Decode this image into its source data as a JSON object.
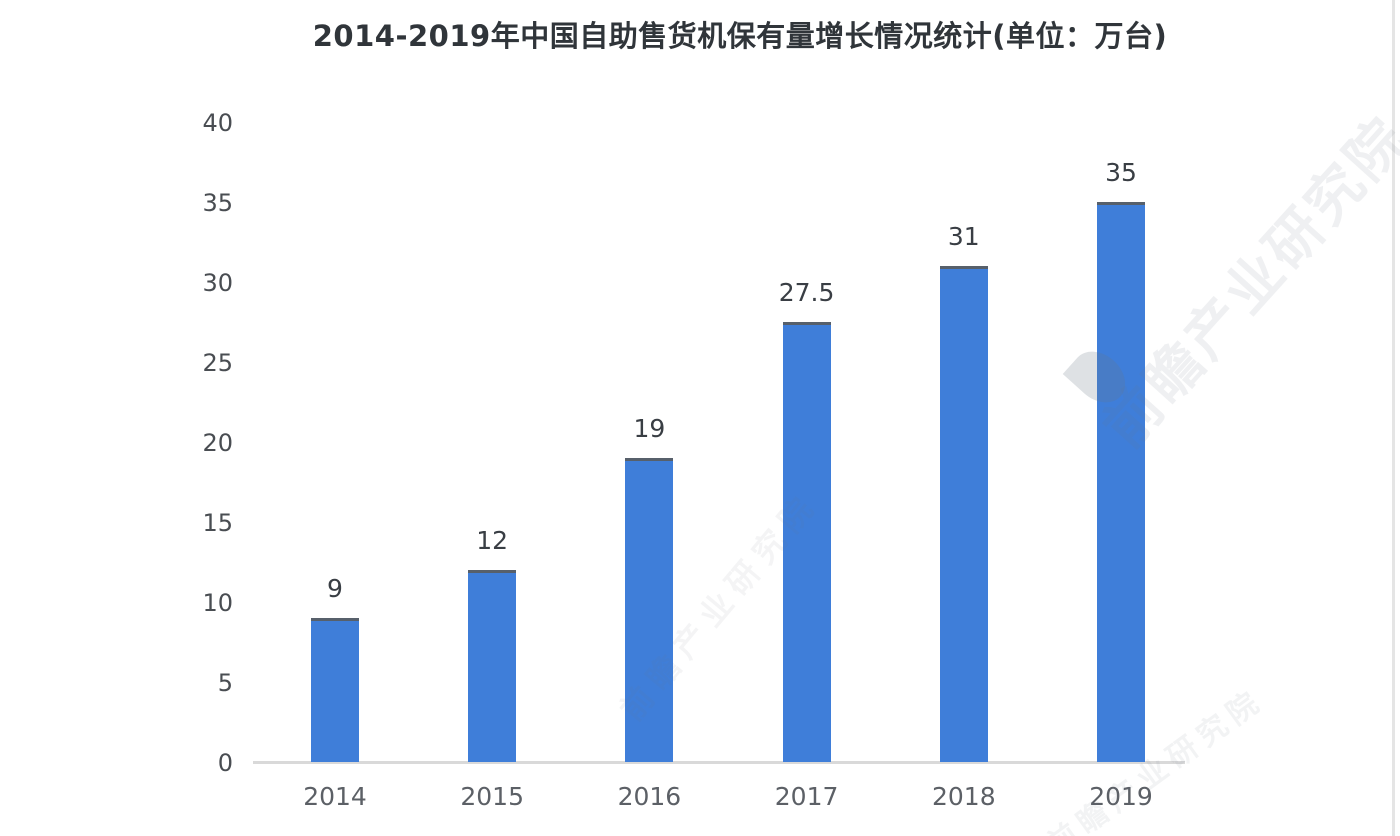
{
  "page": {
    "background": "#ffffff",
    "right_edge_line_color": "#e5e5e5"
  },
  "chart_data": {
    "type": "bar",
    "title": "2014-2019年中国自助售货机保有量增长情况统计(单位：万台)",
    "categories": [
      "2014",
      "2015",
      "2016",
      "2017",
      "2018",
      "2019"
    ],
    "values": [
      9,
      12,
      19,
      27.5,
      31,
      35
    ],
    "value_labels": [
      "9",
      "12",
      "19",
      "27.5",
      "31",
      "35"
    ],
    "unit": "万台",
    "xlabel": "",
    "ylabel": "",
    "ylim": [
      0,
      40
    ],
    "yticks": [
      0,
      5,
      10,
      15,
      20,
      25,
      30,
      35,
      40
    ],
    "grid": false,
    "legend_position": "none",
    "bar_color": "#3f7ed9",
    "bar_top_edge_color": "#57606b",
    "axis_line_color": "#d9d9d9",
    "title_color": "#30353a",
    "value_label_color": "#393e44",
    "ytick_color": "#494d52",
    "xtick_color": "#5c6066"
  },
  "watermark": {
    "text": "前瞻产业研究院",
    "color": "#6b7684"
  }
}
